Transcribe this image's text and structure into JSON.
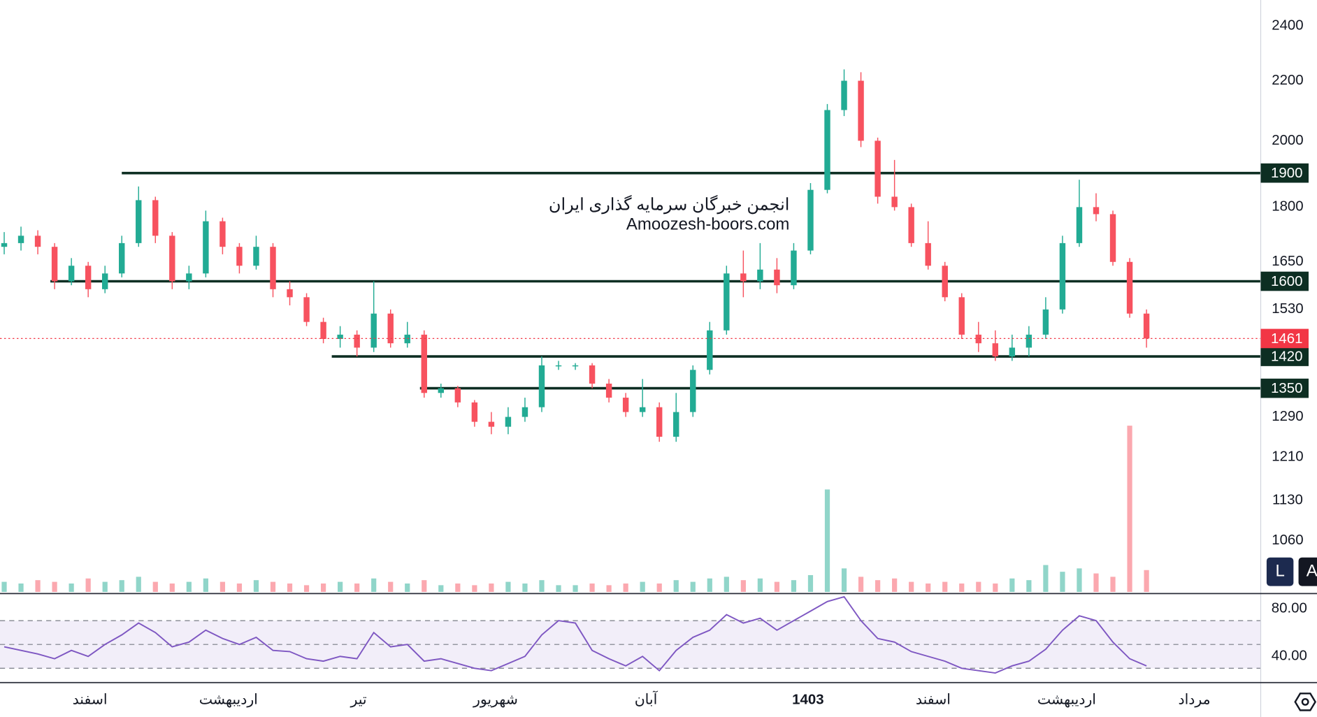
{
  "chart_data": {
    "type": "candlestick",
    "log_scale": true,
    "up_color": "#22ab94",
    "down_color": "#f7525f",
    "ohlc": [
      [
        1690,
        1730,
        1670,
        1700
      ],
      [
        1700,
        1745,
        1680,
        1720
      ],
      [
        1720,
        1735,
        1670,
        1690
      ],
      [
        1690,
        1700,
        1580,
        1600
      ],
      [
        1600,
        1660,
        1590,
        1640
      ],
      [
        1640,
        1650,
        1560,
        1580
      ],
      [
        1580,
        1640,
        1570,
        1620
      ],
      [
        1620,
        1720,
        1610,
        1700
      ],
      [
        1700,
        1860,
        1690,
        1820
      ],
      [
        1820,
        1830,
        1700,
        1720
      ],
      [
        1720,
        1730,
        1580,
        1600
      ],
      [
        1600,
        1640,
        1580,
        1620
      ],
      [
        1620,
        1790,
        1610,
        1760
      ],
      [
        1760,
        1770,
        1670,
        1690
      ],
      [
        1690,
        1700,
        1620,
        1640
      ],
      [
        1640,
        1720,
        1630,
        1690
      ],
      [
        1690,
        1700,
        1560,
        1580
      ],
      [
        1580,
        1600,
        1540,
        1560
      ],
      [
        1560,
        1570,
        1490,
        1500
      ],
      [
        1500,
        1510,
        1450,
        1460
      ],
      [
        1460,
        1490,
        1440,
        1470
      ],
      [
        1470,
        1480,
        1420,
        1440
      ],
      [
        1440,
        1600,
        1430,
        1520
      ],
      [
        1520,
        1530,
        1440,
        1450
      ],
      [
        1450,
        1500,
        1440,
        1470
      ],
      [
        1470,
        1480,
        1330,
        1340
      ],
      [
        1340,
        1360,
        1330,
        1350
      ],
      [
        1350,
        1355,
        1310,
        1320
      ],
      [
        1320,
        1325,
        1270,
        1280
      ],
      [
        1280,
        1300,
        1255,
        1270
      ],
      [
        1270,
        1310,
        1255,
        1290
      ],
      [
        1290,
        1330,
        1280,
        1310
      ],
      [
        1310,
        1420,
        1300,
        1400
      ],
      [
        1400,
        1410,
        1390,
        1400
      ],
      [
        1400,
        1405,
        1390,
        1400
      ],
      [
        1400,
        1405,
        1350,
        1360
      ],
      [
        1360,
        1370,
        1320,
        1330
      ],
      [
        1330,
        1340,
        1290,
        1300
      ],
      [
        1300,
        1370,
        1290,
        1310
      ],
      [
        1310,
        1320,
        1240,
        1250
      ],
      [
        1250,
        1340,
        1240,
        1300
      ],
      [
        1300,
        1400,
        1290,
        1390
      ],
      [
        1390,
        1500,
        1380,
        1480
      ],
      [
        1480,
        1640,
        1470,
        1620
      ],
      [
        1620,
        1680,
        1560,
        1600
      ],
      [
        1600,
        1700,
        1580,
        1630
      ],
      [
        1630,
        1660,
        1570,
        1590
      ],
      [
        1590,
        1700,
        1580,
        1680
      ],
      [
        1680,
        1870,
        1670,
        1850
      ],
      [
        1850,
        2120,
        1840,
        2100
      ],
      [
        2100,
        2240,
        2080,
        2200
      ],
      [
        2200,
        2230,
        1980,
        2000
      ],
      [
        2000,
        2010,
        1810,
        1830
      ],
      [
        1830,
        1940,
        1790,
        1800
      ],
      [
        1800,
        1810,
        1690,
        1700
      ],
      [
        1700,
        1760,
        1630,
        1640
      ],
      [
        1640,
        1650,
        1550,
        1560
      ],
      [
        1560,
        1570,
        1460,
        1470
      ],
      [
        1470,
        1500,
        1430,
        1450
      ],
      [
        1450,
        1480,
        1410,
        1420
      ],
      [
        1420,
        1470,
        1410,
        1440
      ],
      [
        1440,
        1490,
        1420,
        1470
      ],
      [
        1470,
        1560,
        1460,
        1530
      ],
      [
        1530,
        1720,
        1520,
        1700
      ],
      [
        1700,
        1880,
        1690,
        1800
      ],
      [
        1800,
        1840,
        1760,
        1780
      ],
      [
        1780,
        1790,
        1640,
        1650
      ],
      [
        1650,
        1660,
        1510,
        1520
      ],
      [
        1520,
        1530,
        1440,
        1461
      ]
    ],
    "ylim": [
      977,
      2501
    ],
    "yticks": [
      2400,
      2200,
      2000,
      1800,
      1650,
      1530,
      1290,
      1210,
      1130,
      1060
    ],
    "xlim": [
      -0.25,
      74.8
    ],
    "xticks": [
      {
        "value": 5.1,
        "label": "اسفند"
      },
      {
        "value": 13.35,
        "label": "اردیبهشت"
      },
      {
        "value": 21.1,
        "label": "تیر"
      },
      {
        "value": 29.25,
        "label": "شهریور"
      },
      {
        "value": 38.2,
        "label": "آبان"
      },
      {
        "value": 47.85,
        "label": "1403"
      },
      {
        "value": 55.3,
        "label": "اسفند"
      },
      {
        "value": 63.25,
        "label": "اردیبهشت"
      },
      {
        "value": 70.85,
        "label": "مرداد"
      }
    ],
    "levels": [
      1900,
      1600,
      1420,
      1350
    ],
    "level_color": "#0d2e22",
    "last_price_color": "#f23645",
    "volume": {
      "ylim": [
        0,
        100
      ],
      "values": [
        6,
        5,
        7,
        6,
        5,
        8,
        6,
        7,
        9,
        6,
        5,
        6,
        8,
        6,
        5,
        7,
        6,
        5,
        4,
        5,
        6,
        5,
        8,
        6,
        5,
        7,
        4,
        5,
        4,
        5,
        6,
        5,
        7,
        4,
        4,
        5,
        4,
        5,
        6,
        5,
        7,
        6,
        8,
        9,
        7,
        8,
        6,
        7,
        10,
        61,
        14,
        9,
        7,
        8,
        6,
        5,
        6,
        5,
        6,
        5,
        8,
        7,
        16,
        12,
        14,
        11,
        9,
        99,
        13
      ]
    },
    "rsi": {
      "color": "#7e57c2",
      "ylim": [
        18,
        92
      ],
      "yticks": [
        {
          "value": 80,
          "label": "80.00"
        },
        {
          "value": 40,
          "label": "40.00"
        }
      ],
      "levels": [
        30,
        50,
        70
      ],
      "values": [
        48,
        45,
        42,
        38,
        45,
        40,
        50,
        58,
        68,
        60,
        48,
        52,
        62,
        55,
        50,
        56,
        45,
        44,
        38,
        36,
        40,
        38,
        60,
        48,
        50,
        36,
        38,
        34,
        30,
        28,
        34,
        40,
        58,
        70,
        68,
        45,
        38,
        32,
        40,
        28,
        45,
        56,
        62,
        75,
        68,
        72,
        62,
        70,
        78,
        86,
        90,
        70,
        55,
        52,
        44,
        40,
        36,
        30,
        28,
        26,
        32,
        36,
        46,
        62,
        74,
        70,
        52,
        38,
        32
      ]
    }
  },
  "watermark": {
    "line1": "انجمن خبرگان سرمایه گذاری ایران",
    "line2": "Amoozesh-boors.com"
  },
  "buttons": [
    "L",
    "A"
  ]
}
